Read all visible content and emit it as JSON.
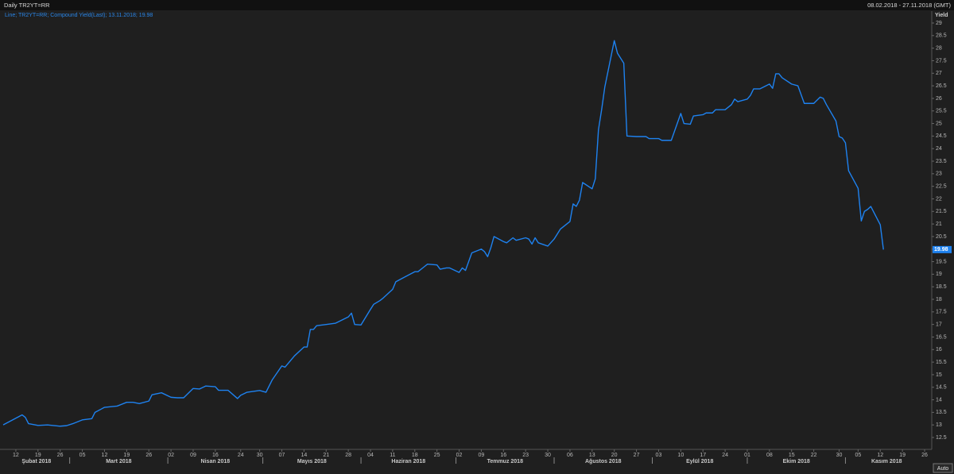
{
  "chart_data": {
    "type": "line",
    "title": "Daily TR2YT=RR",
    "date_range": "08.02.2018 - 27.11.2018 (GMT)",
    "ylabel": "Yield",
    "button": "Auto",
    "xlim": [
      "2018-02-08",
      "2018-11-27"
    ],
    "ylim": [
      12.5,
      29
    ],
    "yticks": [
      12.5,
      13,
      13.5,
      14,
      14.5,
      15,
      15.5,
      16,
      16.5,
      17,
      17.5,
      18,
      18.5,
      19,
      19.5,
      20,
      20.5,
      21,
      21.5,
      22,
      22.5,
      23,
      23.5,
      24,
      24.5,
      25,
      25.5,
      26,
      26.5,
      27,
      27.5,
      28,
      28.5,
      29
    ],
    "xticks": [
      {
        "value": "2018-02-12",
        "label": "12"
      },
      {
        "value": "2018-02-19",
        "label": "19"
      },
      {
        "value": "2018-02-26",
        "label": "26"
      },
      {
        "value": "2018-03-05",
        "label": "05"
      },
      {
        "value": "2018-03-12",
        "label": "12"
      },
      {
        "value": "2018-03-19",
        "label": "19"
      },
      {
        "value": "2018-03-26",
        "label": "26"
      },
      {
        "value": "2018-04-02",
        "label": "02"
      },
      {
        "value": "2018-04-09",
        "label": "09"
      },
      {
        "value": "2018-04-16",
        "label": "16"
      },
      {
        "value": "2018-04-24",
        "label": "24"
      },
      {
        "value": "2018-04-30",
        "label": "30"
      },
      {
        "value": "2018-05-07",
        "label": "07"
      },
      {
        "value": "2018-05-14",
        "label": "14"
      },
      {
        "value": "2018-05-21",
        "label": "21"
      },
      {
        "value": "2018-05-28",
        "label": "28"
      },
      {
        "value": "2018-06-04",
        "label": "04"
      },
      {
        "value": "2018-06-11",
        "label": "11"
      },
      {
        "value": "2018-06-18",
        "label": "18"
      },
      {
        "value": "2018-06-25",
        "label": "25"
      },
      {
        "value": "2018-07-02",
        "label": "02"
      },
      {
        "value": "2018-07-09",
        "label": "09"
      },
      {
        "value": "2018-07-16",
        "label": "16"
      },
      {
        "value": "2018-07-23",
        "label": "23"
      },
      {
        "value": "2018-07-30",
        "label": "30"
      },
      {
        "value": "2018-08-06",
        "label": "06"
      },
      {
        "value": "2018-08-13",
        "label": "13"
      },
      {
        "value": "2018-08-20",
        "label": "20"
      },
      {
        "value": "2018-08-27",
        "label": "27"
      },
      {
        "value": "2018-09-03",
        "label": "03"
      },
      {
        "value": "2018-09-10",
        "label": "10"
      },
      {
        "value": "2018-09-17",
        "label": "17"
      },
      {
        "value": "2018-09-24",
        "label": "24"
      },
      {
        "value": "2018-10-01",
        "label": "01"
      },
      {
        "value": "2018-10-08",
        "label": "08"
      },
      {
        "value": "2018-10-15",
        "label": "15"
      },
      {
        "value": "2018-10-22",
        "label": "22"
      },
      {
        "value": "2018-10-30",
        "label": "30"
      },
      {
        "value": "2018-11-05",
        "label": "05"
      },
      {
        "value": "2018-11-12",
        "label": "12"
      },
      {
        "value": "2018-11-19",
        "label": "19"
      },
      {
        "value": "2018-11-26",
        "label": "26"
      }
    ],
    "months": [
      {
        "value": "2018-02",
        "label": "Şubat 2018"
      },
      {
        "value": "2018-03",
        "label": "Mart 2018"
      },
      {
        "value": "2018-04",
        "label": "Nisan 2018"
      },
      {
        "value": "2018-05",
        "label": "Mayıs 2018"
      },
      {
        "value": "2018-06",
        "label": "Haziran 2018"
      },
      {
        "value": "2018-07",
        "label": "Temmuz 2018"
      },
      {
        "value": "2018-08",
        "label": "Ağustos 2018"
      },
      {
        "value": "2018-09",
        "label": "Eylül 2018"
      },
      {
        "value": "2018-10",
        "label": "Ekim 2018"
      },
      {
        "value": "2018-11",
        "label": "Kasım 2018"
      }
    ],
    "x": [
      "2018-02-08",
      "2018-02-14",
      "2018-02-15",
      "2018-02-16",
      "2018-02-19",
      "2018-02-22",
      "2018-02-26",
      "2018-02-28",
      "2018-03-02",
      "2018-03-05",
      "2018-03-08",
      "2018-03-09",
      "2018-03-12",
      "2018-03-16",
      "2018-03-19",
      "2018-03-21",
      "2018-03-23",
      "2018-03-26",
      "2018-03-27",
      "2018-03-30",
      "2018-04-02",
      "2018-04-04",
      "2018-04-06",
      "2018-04-09",
      "2018-04-11",
      "2018-04-13",
      "2018-04-16",
      "2018-04-17",
      "2018-04-20",
      "2018-04-23",
      "2018-04-24",
      "2018-04-26",
      "2018-04-30",
      "2018-05-02",
      "2018-05-04",
      "2018-05-07",
      "2018-05-08",
      "2018-05-10",
      "2018-05-11",
      "2018-05-14",
      "2018-05-15",
      "2018-05-16",
      "2018-05-17",
      "2018-05-18",
      "2018-05-21",
      "2018-05-24",
      "2018-05-28",
      "2018-05-29",
      "2018-05-30",
      "2018-06-01",
      "2018-06-04",
      "2018-06-05",
      "2018-06-07",
      "2018-06-08",
      "2018-06-11",
      "2018-06-12",
      "2018-06-15",
      "2018-06-18",
      "2018-06-19",
      "2018-06-21",
      "2018-06-22",
      "2018-06-25",
      "2018-06-26",
      "2018-06-28",
      "2018-06-29",
      "2018-07-02",
      "2018-07-03",
      "2018-07-04",
      "2018-07-05",
      "2018-07-06",
      "2018-07-09",
      "2018-07-10",
      "2018-07-11",
      "2018-07-12",
      "2018-07-13",
      "2018-07-16",
      "2018-07-17",
      "2018-07-19",
      "2018-07-20",
      "2018-07-23",
      "2018-07-24",
      "2018-07-25",
      "2018-07-26",
      "2018-07-27",
      "2018-07-30",
      "2018-08-01",
      "2018-08-02",
      "2018-08-03",
      "2018-08-06",
      "2018-08-07",
      "2018-08-08",
      "2018-08-09",
      "2018-08-10",
      "2018-08-13",
      "2018-08-14",
      "2018-08-15",
      "2018-08-16",
      "2018-08-17",
      "2018-08-20",
      "2018-08-21",
      "2018-08-23",
      "2018-08-24",
      "2018-08-27",
      "2018-08-30",
      "2018-08-31",
      "2018-09-03",
      "2018-09-04",
      "2018-09-07",
      "2018-09-10",
      "2018-09-11",
      "2018-09-13",
      "2018-09-14",
      "2018-09-17",
      "2018-09-18",
      "2018-09-20",
      "2018-09-21",
      "2018-09-24",
      "2018-09-26",
      "2018-09-27",
      "2018-09-28",
      "2018-10-01",
      "2018-10-02",
      "2018-10-03",
      "2018-10-05",
      "2018-10-08",
      "2018-10-09",
      "2018-10-10",
      "2018-10-11",
      "2018-10-12",
      "2018-10-15",
      "2018-10-17",
      "2018-10-19",
      "2018-10-22",
      "2018-10-24",
      "2018-10-25",
      "2018-10-26",
      "2018-10-29",
      "2018-10-30",
      "2018-10-31",
      "2018-11-01",
      "2018-11-02",
      "2018-11-05",
      "2018-11-06",
      "2018-11-07",
      "2018-11-08",
      "2018-11-09",
      "2018-11-12",
      "2018-11-13"
    ],
    "series": [
      {
        "name": "Line; TR2YT=RR; Compound Yield(Last); 13.11.2018; 19.98",
        "color": "#1e82f0",
        "values": [
          13.0,
          13.4,
          13.3,
          13.05,
          12.98,
          13.0,
          12.95,
          12.97,
          13.05,
          13.2,
          13.25,
          13.5,
          13.7,
          13.75,
          13.9,
          13.9,
          13.85,
          13.95,
          14.2,
          14.28,
          14.1,
          14.08,
          14.08,
          14.45,
          14.43,
          14.55,
          14.52,
          14.38,
          14.38,
          14.05,
          14.18,
          14.3,
          14.37,
          14.3,
          14.8,
          15.35,
          15.3,
          15.6,
          15.75,
          16.1,
          16.1,
          16.8,
          16.8,
          16.95,
          17.0,
          17.05,
          17.3,
          17.45,
          17.0,
          16.98,
          17.6,
          17.8,
          17.95,
          18.05,
          18.4,
          18.7,
          18.9,
          19.1,
          19.1,
          19.3,
          19.4,
          19.37,
          19.2,
          19.25,
          19.25,
          19.07,
          19.25,
          19.15,
          19.5,
          19.85,
          20.0,
          19.9,
          19.7,
          20.05,
          20.5,
          20.3,
          20.25,
          20.45,
          20.35,
          20.45,
          20.4,
          20.2,
          20.45,
          20.25,
          20.12,
          20.4,
          20.6,
          20.8,
          21.1,
          21.8,
          21.7,
          21.95,
          22.65,
          22.4,
          22.8,
          24.75,
          25.55,
          26.45,
          28.3,
          27.8,
          27.4,
          24.5,
          24.48,
          24.48,
          24.4,
          24.4,
          24.33,
          24.33,
          25.4,
          25.0,
          24.97,
          25.3,
          25.35,
          25.42,
          25.42,
          25.55,
          25.55,
          25.75,
          25.97,
          25.87,
          25.97,
          26.12,
          26.38,
          26.38,
          26.57,
          26.4,
          26.98,
          26.98,
          26.82,
          26.57,
          26.5,
          25.8,
          25.8,
          26.05,
          26.0,
          25.75,
          25.1,
          24.48,
          24.42,
          24.23,
          23.12,
          22.42,
          21.12,
          21.5,
          21.58,
          21.7,
          20.97,
          19.98
        ]
      }
    ]
  }
}
